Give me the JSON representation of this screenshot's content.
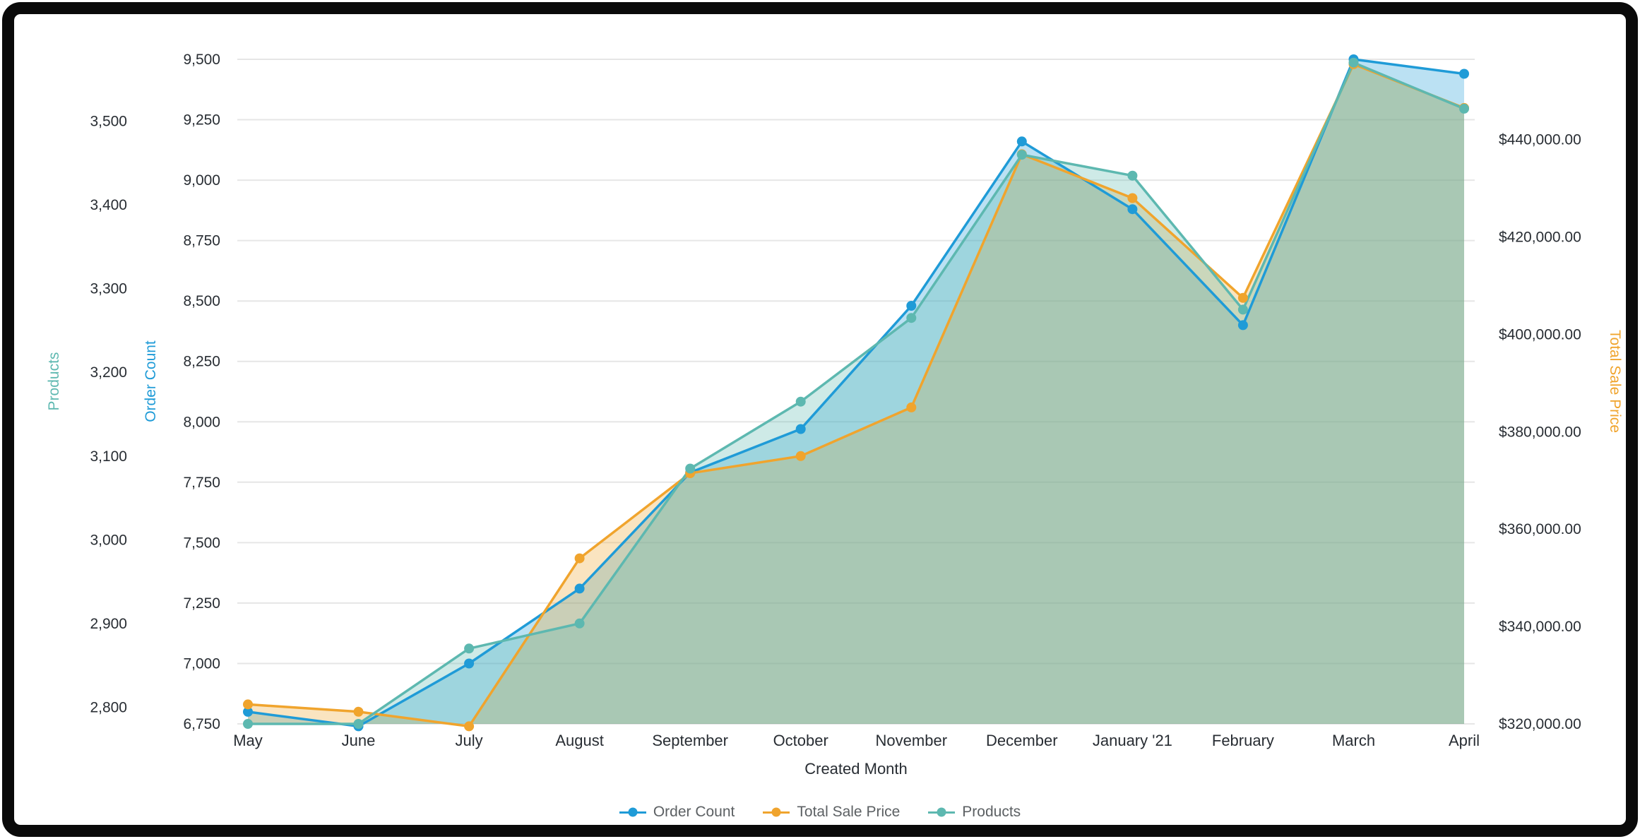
{
  "chart_data": {
    "type": "area",
    "x": {
      "title": "Created Month",
      "categories": [
        "May",
        "June",
        "July",
        "August",
        "September",
        "October",
        "November",
        "December",
        "January '21",
        "February",
        "March",
        "April"
      ]
    },
    "axes": [
      {
        "id": "products",
        "title": "Products",
        "color": "#5db8b0",
        "side": "left-outer",
        "min": 2780,
        "max": 3574,
        "tick_values": [
          2800,
          2900,
          3000,
          3100,
          3200,
          3300,
          3400,
          3500
        ],
        "tick_format": "number"
      },
      {
        "id": "order_count",
        "title": "Order Count",
        "color": "#1f9bd7",
        "side": "left-inner",
        "min": 6750,
        "max": 9500,
        "tick_values": [
          6750,
          7000,
          7250,
          7500,
          7750,
          8000,
          8250,
          8500,
          8750,
          9000,
          9250,
          9500
        ],
        "tick_format": "number"
      },
      {
        "id": "total_sale_price",
        "title": "Total Sale Price",
        "color": "#f0a42d",
        "side": "right",
        "min": 320000,
        "max": 456500,
        "tick_values": [
          320000,
          340000,
          360000,
          380000,
          400000,
          420000,
          440000
        ],
        "tick_format": "currency"
      }
    ],
    "series": [
      {
        "name": "Order Count",
        "axis": "order_count",
        "color": "#1f9bd7",
        "values": [
          6800,
          6740,
          7000,
          7310,
          7790,
          7970,
          8480,
          9160,
          8880,
          8400,
          9500,
          9440
        ]
      },
      {
        "name": "Total Sale Price",
        "axis": "total_sale_price",
        "color": "#f0a42d",
        "values": [
          324000,
          322500,
          319500,
          354000,
          371500,
          375000,
          385000,
          437000,
          428000,
          407500,
          455500,
          446500
        ]
      },
      {
        "name": "Products",
        "axis": "products",
        "color": "#5db8b0",
        "values": [
          2780,
          2780,
          2870,
          2900,
          3085,
          3165,
          3265,
          3460,
          3435,
          3275,
          3570,
          3515
        ]
      }
    ],
    "legend": {
      "position": "bottom"
    },
    "grid": {
      "horizontal_axis": "order_count",
      "color": "#e6e6e6"
    },
    "style": {
      "fill_opacity": 0.3,
      "line_width": 3.5,
      "marker_radius": 7,
      "tick_color": "#282d33"
    }
  }
}
